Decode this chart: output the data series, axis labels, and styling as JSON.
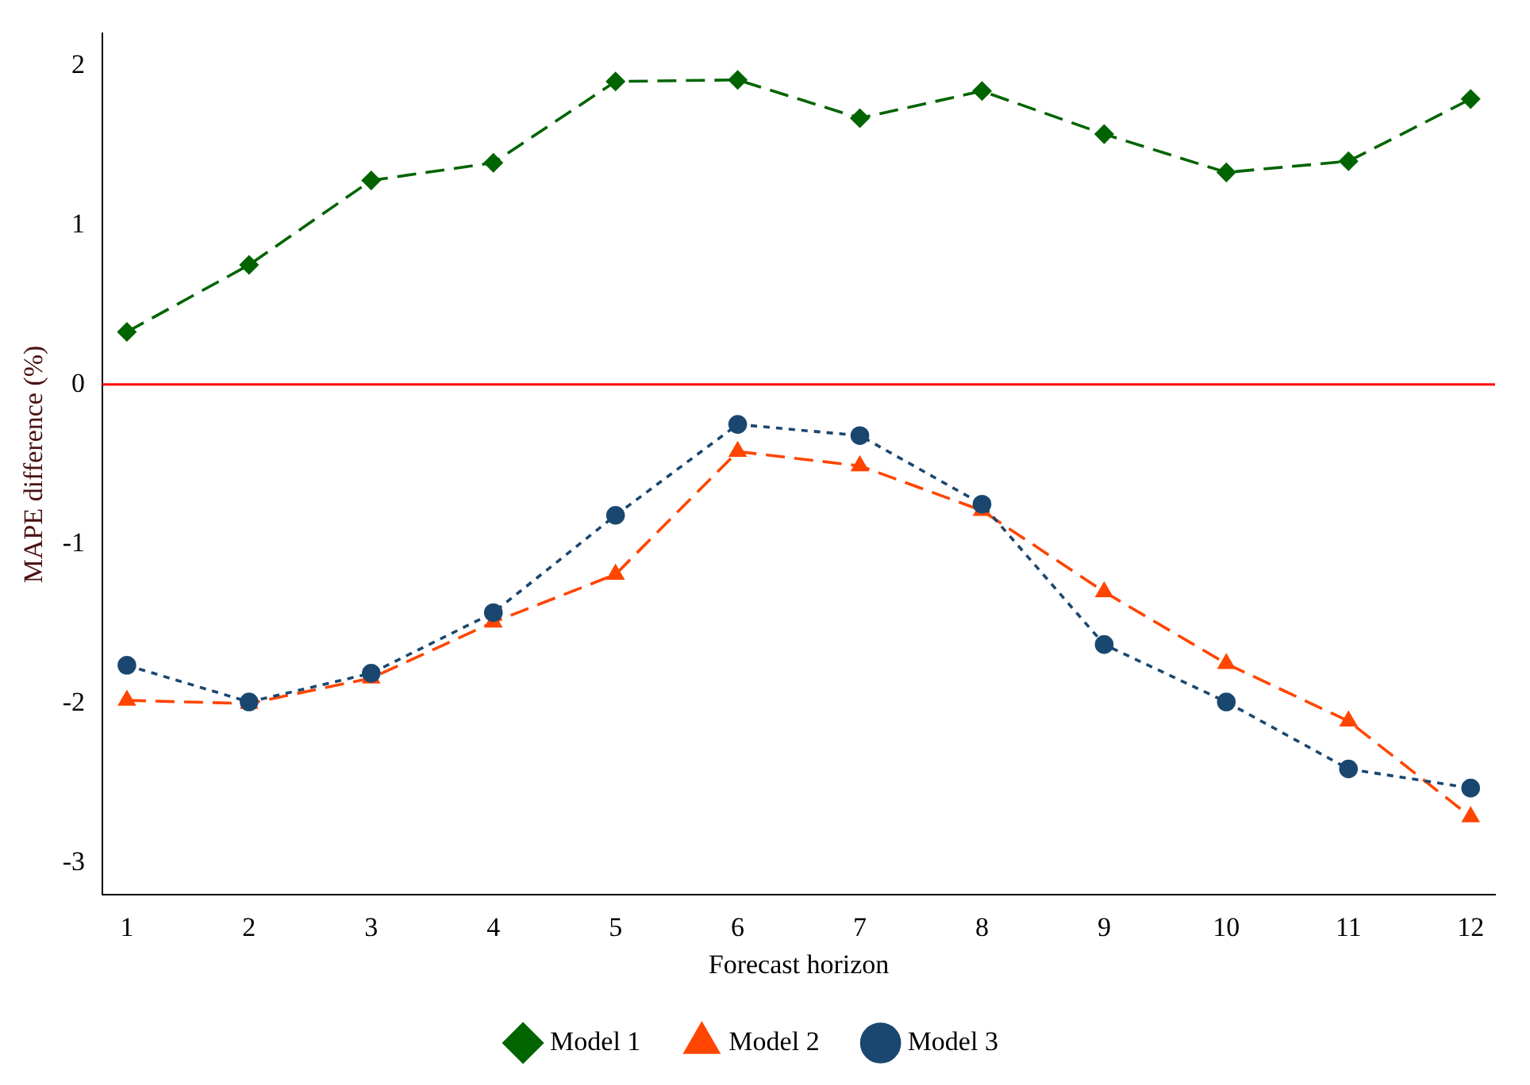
{
  "chart_data": {
    "type": "line",
    "xlabel": "Forecast horizon",
    "ylabel": "MAPE difference (%)",
    "x": [
      1,
      2,
      3,
      4,
      5,
      6,
      7,
      8,
      9,
      10,
      11,
      12
    ],
    "series": [
      {
        "name": "Model 1",
        "color": "#006400",
        "marker": "diamond",
        "line_style": "dashed",
        "values": [
          0.33,
          0.75,
          1.28,
          1.39,
          1.9,
          1.91,
          1.67,
          1.84,
          1.57,
          1.33,
          1.4,
          1.79
        ]
      },
      {
        "name": "Model 2",
        "color": "#ff4500",
        "marker": "triangle",
        "line_style": "dashed",
        "values": [
          -1.98,
          -2.0,
          -1.84,
          -1.49,
          -1.19,
          -0.42,
          -0.51,
          -0.79,
          -1.3,
          -1.75,
          -2.11,
          -2.71
        ]
      },
      {
        "name": "Model 3",
        "color": "#1a476f",
        "marker": "circle",
        "line_style": "dotted",
        "values": [
          -1.76,
          -1.99,
          -1.81,
          -1.43,
          -0.82,
          -0.25,
          -0.32,
          -0.75,
          -1.63,
          -1.99,
          -2.41,
          -2.53
        ]
      }
    ],
    "xlim": [
      0.8,
      12.2
    ],
    "xticks": [
      1,
      2,
      3,
      4,
      5,
      6,
      7,
      8,
      9,
      10,
      11,
      12
    ],
    "ylim": [
      -3.2,
      2.2
    ],
    "yticks": [
      -3,
      -2,
      -1,
      0,
      1,
      2
    ],
    "ref_lines": [
      {
        "axis": "y",
        "value": 0,
        "color": "#ff0000"
      }
    ],
    "grid": false,
    "legend": "bottom"
  }
}
